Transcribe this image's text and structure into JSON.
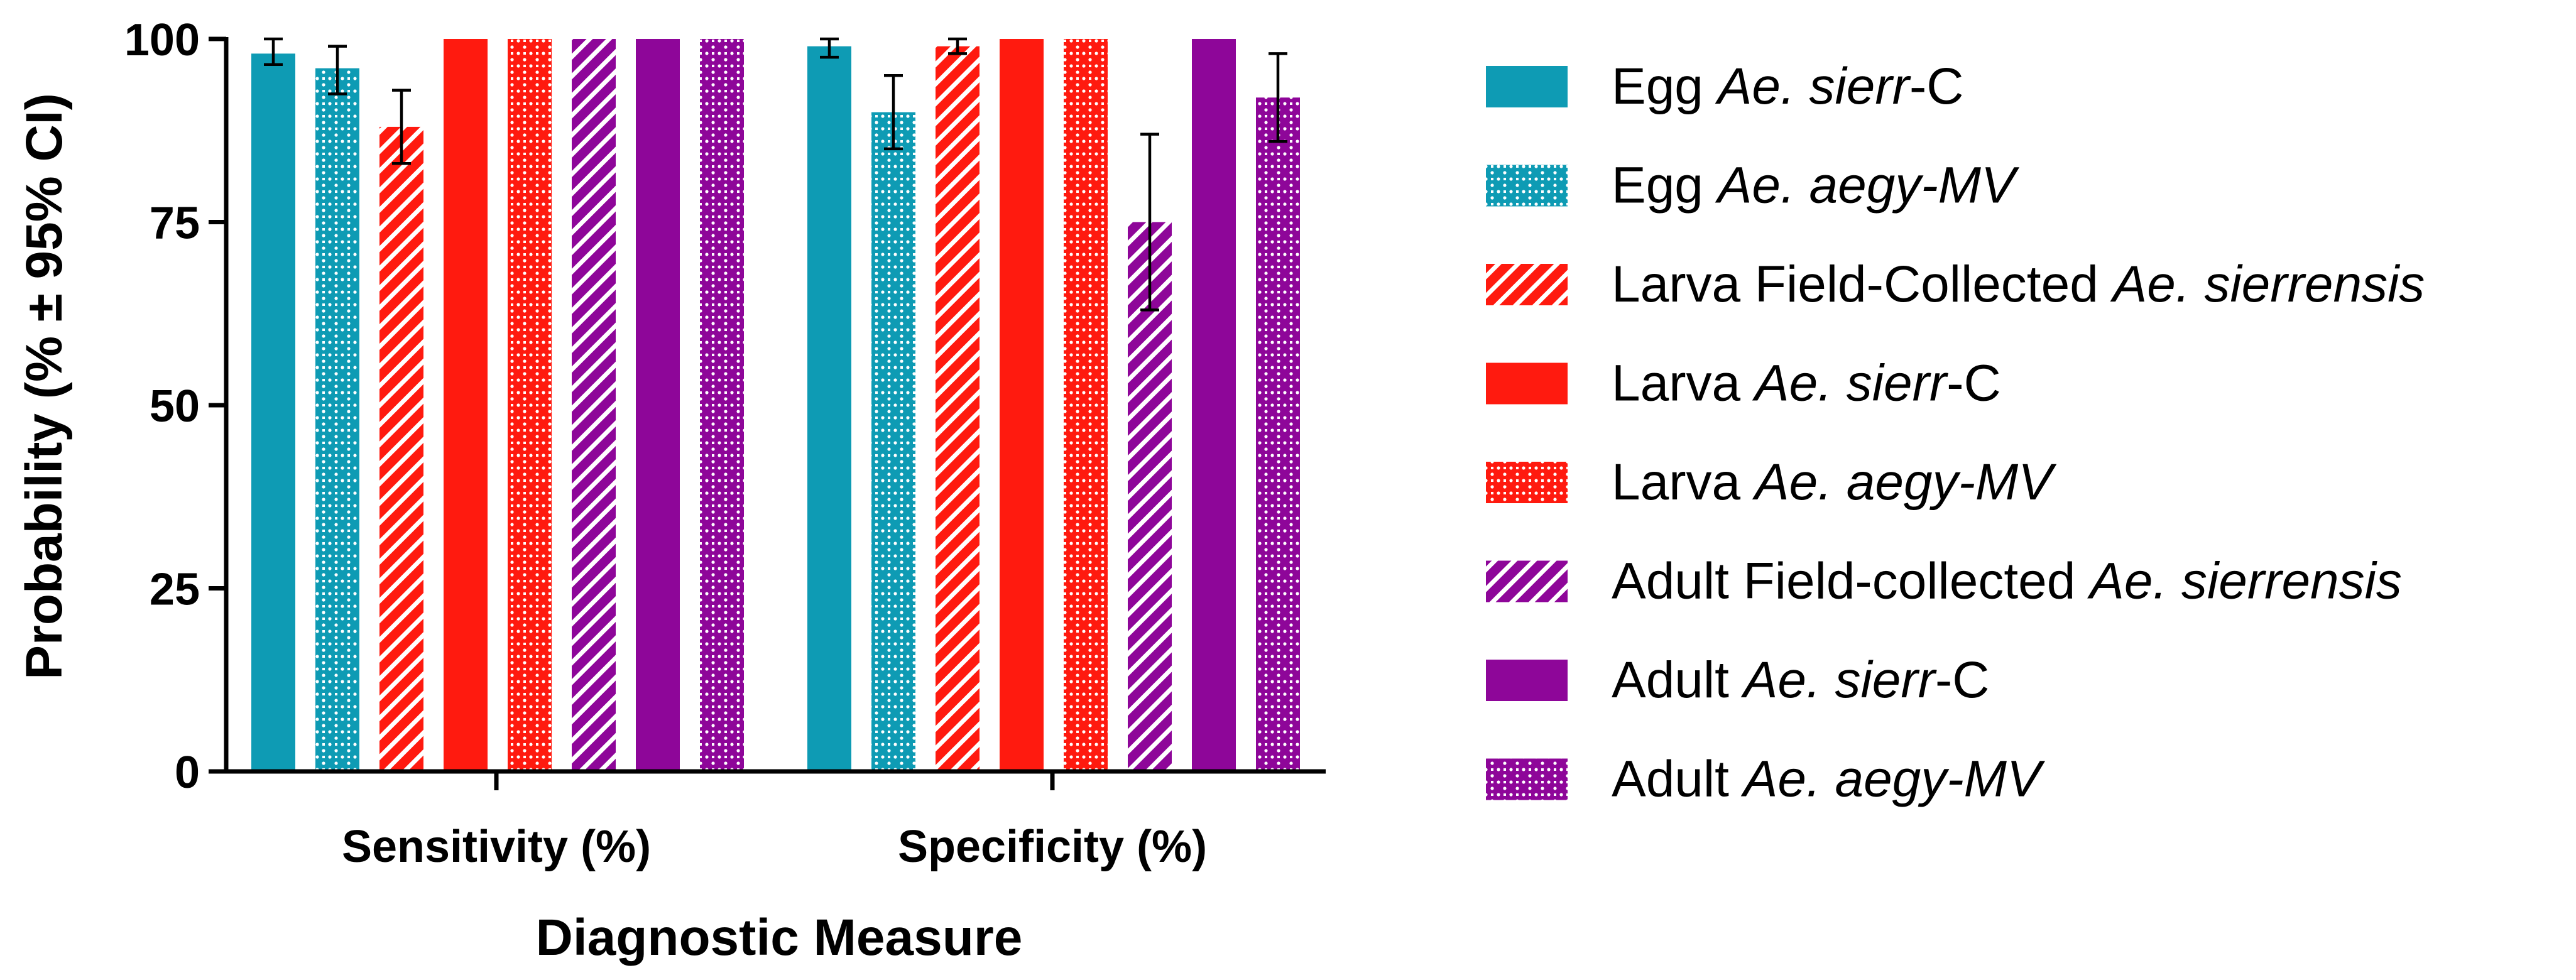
{
  "chart_data": {
    "type": "bar",
    "title": "",
    "xlabel": "Diagnostic Measure",
    "ylabel": "Probability (% ± 95% CI)",
    "ylim": [
      0,
      100
    ],
    "yticks": [
      "0",
      "25",
      "50",
      "75",
      "100"
    ],
    "categories": [
      "Sensitivity (%)",
      "Specificity (%)"
    ],
    "legend_position": "right",
    "series": [
      {
        "name": "Egg",
        "name_italic": "Ae. sierr",
        "name_suffix": "-C",
        "color": "#0E9BB4",
        "pattern": "solid",
        "values": [
          98,
          99
        ],
        "ci_low": [
          96.5,
          97.5
        ],
        "ci_high": [
          100,
          100
        ]
      },
      {
        "name": "Egg",
        "name_italic": "Ae. aegy-MV",
        "name_suffix": "",
        "color": "#0E9BB4",
        "pattern": "dots",
        "values": [
          96,
          90
        ],
        "ci_low": [
          92.5,
          85
        ],
        "ci_high": [
          99,
          95
        ]
      },
      {
        "name": "Larva Field-Collected",
        "name_italic": "Ae. sierrensis",
        "name_suffix": "",
        "color": "#FF1A0F",
        "pattern": "stripes",
        "values": [
          88,
          99
        ],
        "ci_low": [
          83,
          98
        ],
        "ci_high": [
          93,
          100
        ]
      },
      {
        "name": "Larva",
        "name_italic": "Ae. sierr",
        "name_suffix": "-C",
        "color": "#FF1A0F",
        "pattern": "solid",
        "values": [
          100,
          100
        ],
        "ci_low": [
          100,
          100
        ],
        "ci_high": [
          100,
          100
        ]
      },
      {
        "name": "Larva",
        "name_italic": "Ae. aegy-MV",
        "name_suffix": "",
        "color": "#FF1A0F",
        "pattern": "dots",
        "values": [
          100,
          100
        ],
        "ci_low": [
          100,
          100
        ],
        "ci_high": [
          100,
          100
        ]
      },
      {
        "name": "Adult Field-collected",
        "name_italic": "Ae. sierrensis",
        "name_suffix": "",
        "color": "#8E0699",
        "pattern": "stripes",
        "values": [
          100,
          75
        ],
        "ci_low": [
          100,
          63
        ],
        "ci_high": [
          100,
          87
        ]
      },
      {
        "name": "Adult",
        "name_italic": "Ae. sierr",
        "name_suffix": "-C",
        "color": "#8E0699",
        "pattern": "solid",
        "values": [
          100,
          100
        ],
        "ci_low": [
          100,
          100
        ],
        "ci_high": [
          100,
          100
        ]
      },
      {
        "name": "Adult",
        "name_italic": "Ae. aegy-MV",
        "name_suffix": "",
        "color": "#8E0699",
        "pattern": "dots",
        "values": [
          100,
          92
        ],
        "ci_low": [
          100,
          86
        ],
        "ci_high": [
          100,
          98
        ]
      }
    ]
  }
}
